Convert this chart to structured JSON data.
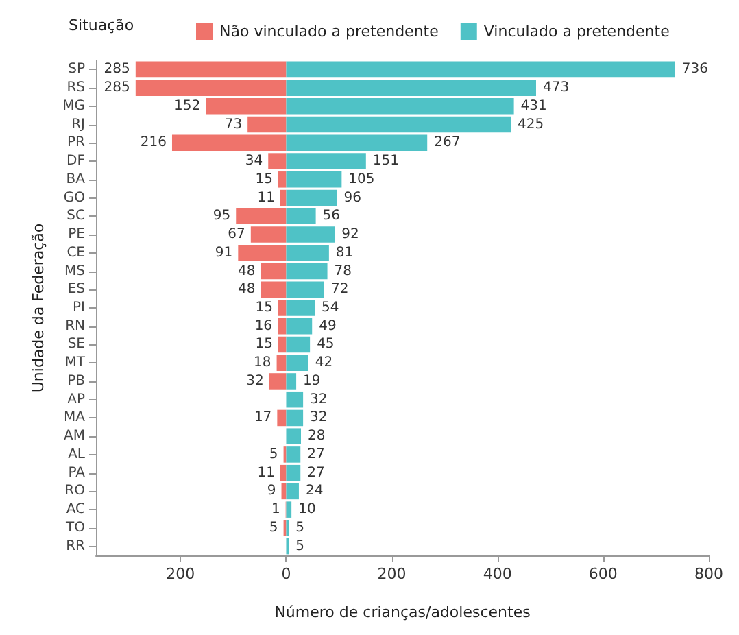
{
  "chart_data": {
    "type": "bar",
    "orientation": "horizontal",
    "xlabel": "Número de crianças/adolescentes",
    "ylabel": "Unidade da Federação",
    "legend_title": "Situação",
    "legend": "top",
    "data_labels": true,
    "grid": false,
    "categories": [
      "SP",
      "RS",
      "MG",
      "RJ",
      "PR",
      "DF",
      "BA",
      "GO",
      "SC",
      "PE",
      "CE",
      "MS",
      "ES",
      "PI",
      "RN",
      "SE",
      "MT",
      "PB",
      "AP",
      "MA",
      "AM",
      "AL",
      "PA",
      "RO",
      "AC",
      "TO",
      "RR"
    ],
    "series": [
      {
        "name": "Não vinculado a pretendente",
        "color": "#ef736b",
        "values": [
          285,
          285,
          152,
          73,
          216,
          34,
          15,
          11,
          95,
          67,
          91,
          48,
          48,
          15,
          16,
          15,
          18,
          32,
          null,
          17,
          null,
          5,
          11,
          9,
          1,
          5,
          null
        ],
        "base": [
          -285,
          -285,
          -152,
          -73,
          -216,
          -34,
          -15,
          -11,
          -95,
          -67,
          -91,
          -48,
          -48,
          -15,
          -16,
          -15,
          -18,
          -32,
          null,
          -17,
          null,
          -5,
          -11,
          -9,
          -1,
          -5,
          null
        ]
      },
      {
        "name": "Vinculado a pretendente",
        "color": "#4fc2c6",
        "values": [
          736,
          473,
          431,
          425,
          267,
          151,
          105,
          96,
          56,
          92,
          81,
          78,
          72,
          54,
          49,
          45,
          42,
          19,
          32,
          32,
          28,
          27,
          27,
          24,
          10,
          5,
          5
        ]
      }
    ],
    "xlim": [
      -360,
      800
    ],
    "xticks": [
      {
        "value": -200,
        "label": "200"
      },
      0,
      200,
      400,
      600,
      800
    ]
  }
}
